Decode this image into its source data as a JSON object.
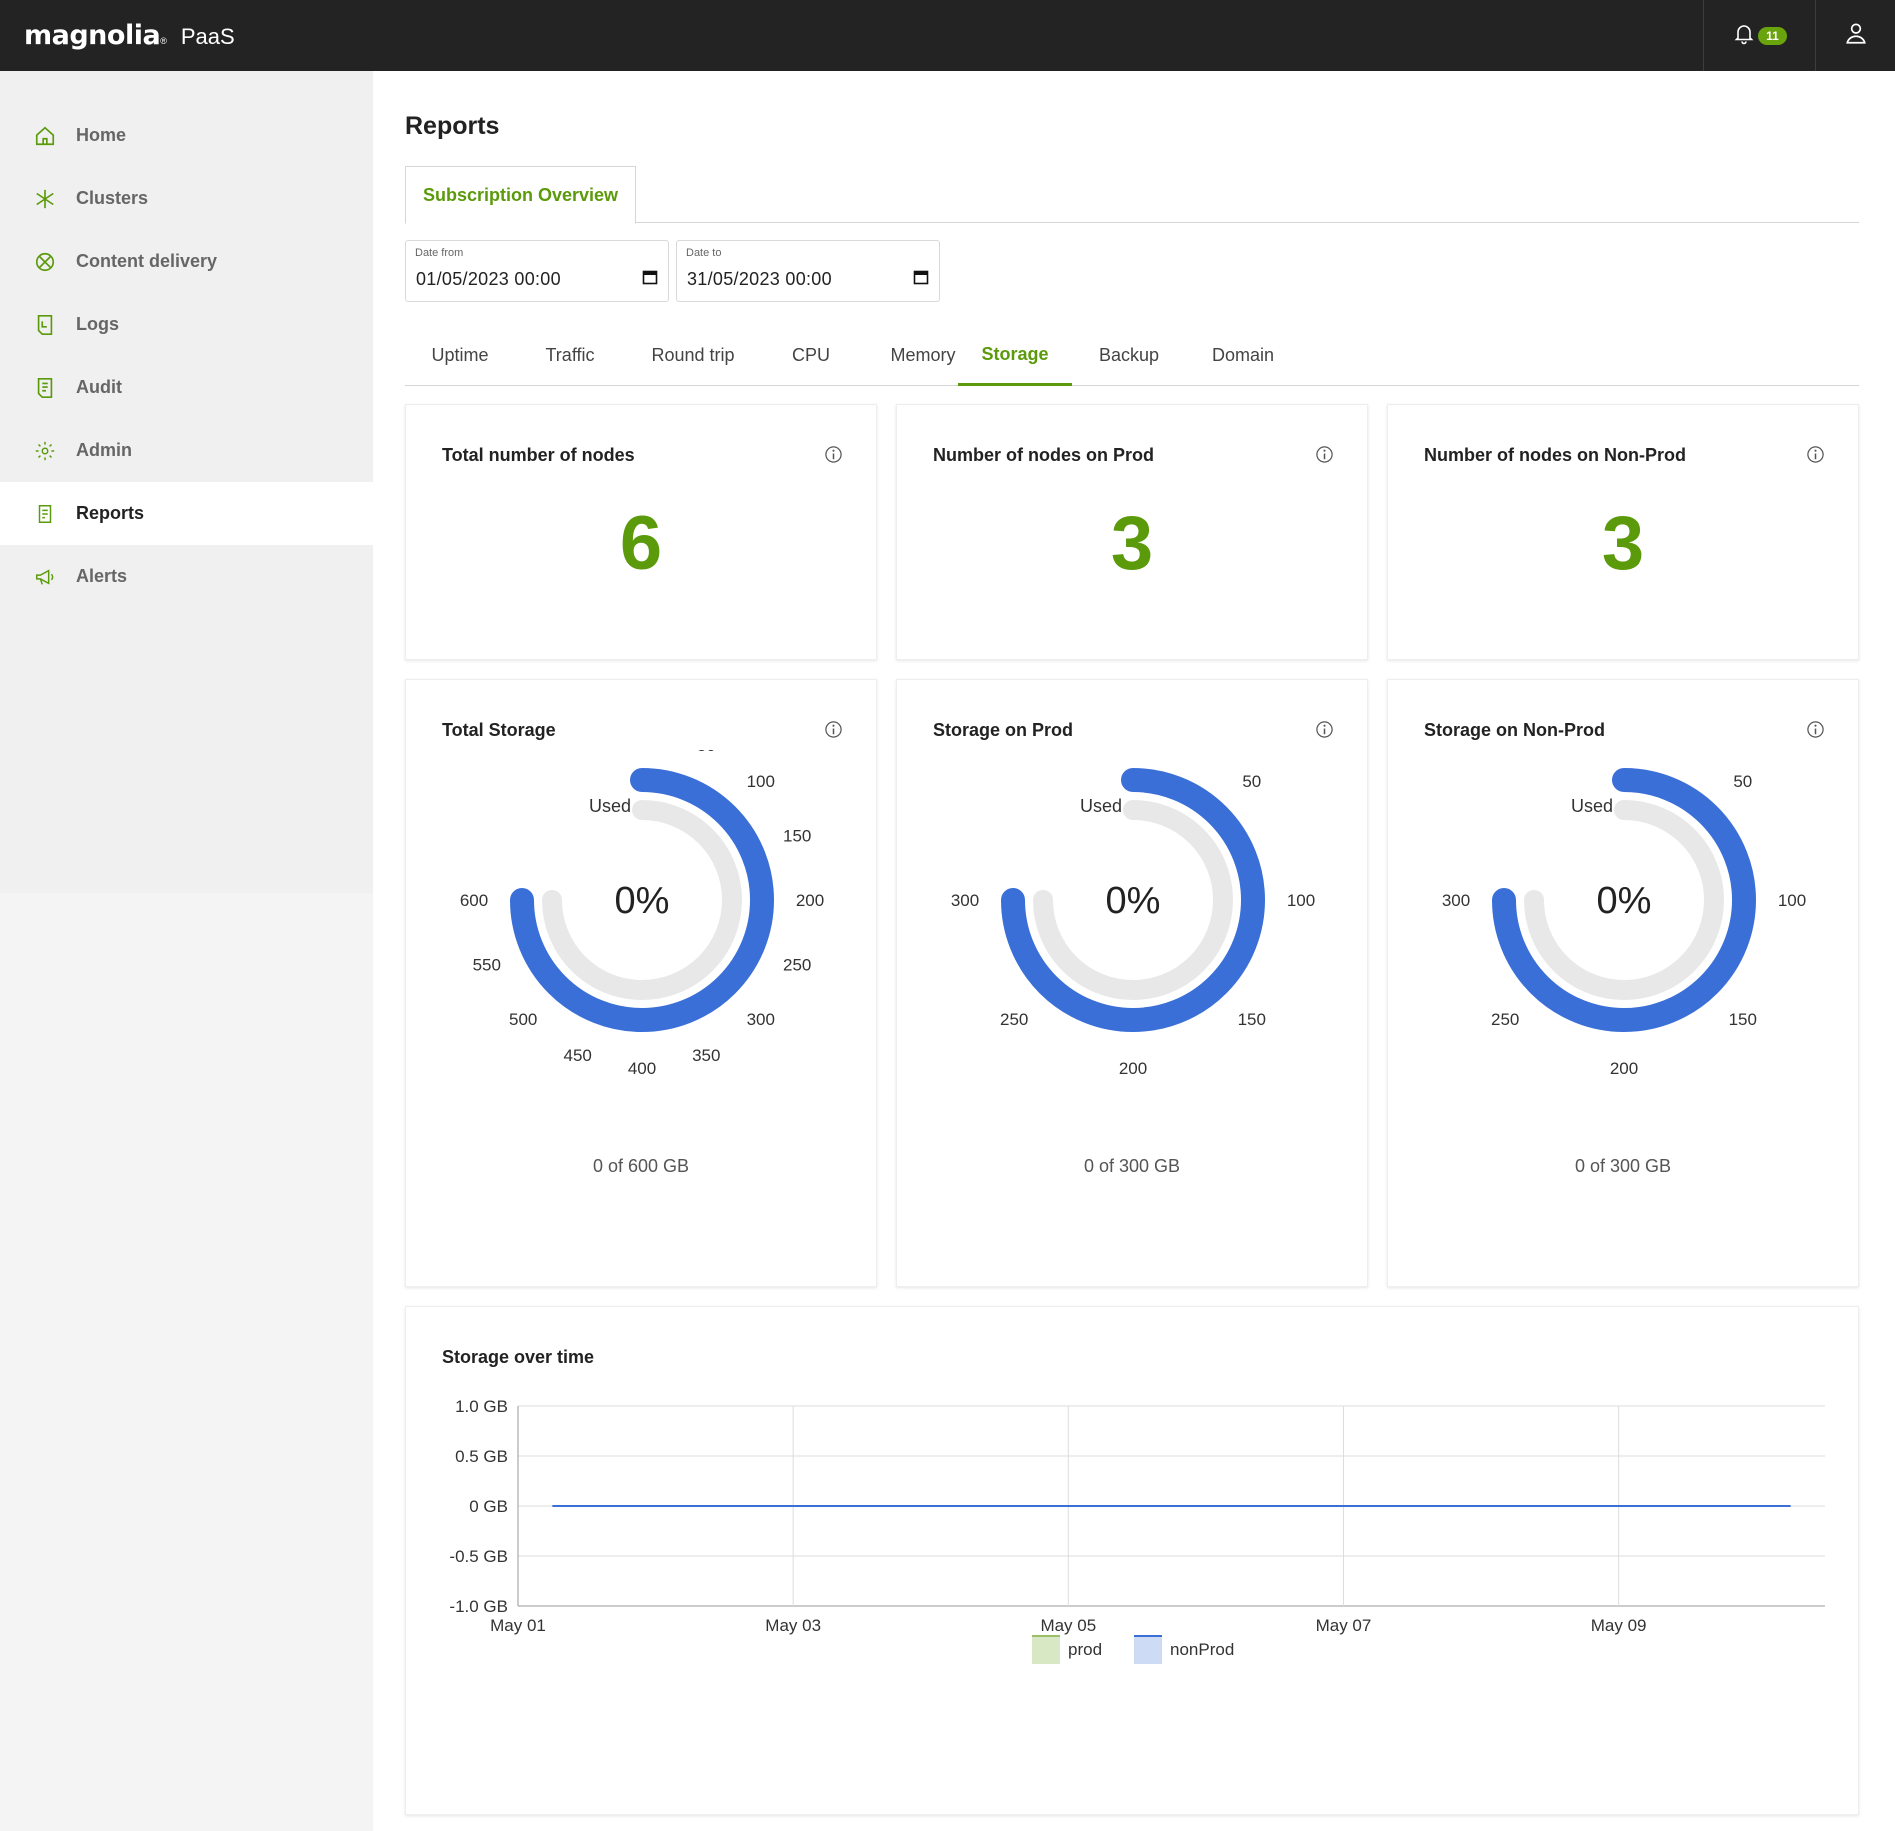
{
  "header": {
    "brand": "magnolia",
    "brand_mark": "®",
    "product": "PaaS",
    "notification_count": "11",
    "icons": {
      "bell": "bell-icon",
      "user": "user-icon"
    }
  },
  "sidebar": {
    "items": [
      {
        "label": "Home",
        "icon": "home-icon",
        "active": false
      },
      {
        "label": "Clusters",
        "icon": "clusters-icon",
        "active": false
      },
      {
        "label": "Content delivery",
        "icon": "content-delivery-icon",
        "active": false
      },
      {
        "label": "Logs",
        "icon": "logs-icon",
        "active": false
      },
      {
        "label": "Audit",
        "icon": "audit-icon",
        "active": false
      },
      {
        "label": "Admin",
        "icon": "gear-icon",
        "active": false
      },
      {
        "label": "Reports",
        "icon": "reports-icon",
        "active": true
      },
      {
        "label": "Alerts",
        "icon": "megaphone-icon",
        "active": false
      }
    ]
  },
  "main": {
    "title": "Reports",
    "top_tab": "Subscription Overview",
    "date_from": {
      "label": "Date from",
      "value": "01/05/2023 00:00"
    },
    "date_to": {
      "label": "Date to",
      "value": "31/05/2023 00:00"
    },
    "tabs": [
      {
        "label": "Uptime",
        "active": false
      },
      {
        "label": "Traffic",
        "active": false
      },
      {
        "label": "Round trip",
        "active": false
      },
      {
        "label": "CPU",
        "active": false
      },
      {
        "label": "Memory",
        "active": false
      },
      {
        "label": "Storage",
        "active": true
      },
      {
        "label": "Backup",
        "active": false
      },
      {
        "label": "Domain",
        "active": false
      }
    ],
    "node_cards": [
      {
        "title": "Total number of nodes",
        "value": "6"
      },
      {
        "title": "Number of nodes on Prod",
        "value": "3"
      },
      {
        "title": "Number of nodes on Non-Prod",
        "value": "3"
      }
    ],
    "storage_cards": [
      {
        "title": "Total Storage",
        "center": "0%",
        "used_label": "Used",
        "caption": "0 of 600 GB",
        "max": 600,
        "step": 50,
        "used_fraction": 0
      },
      {
        "title": "Storage on Prod",
        "center": "0%",
        "used_label": "Used",
        "caption": "0 of 300 GB",
        "max": 300,
        "step": 50,
        "used_fraction": 0
      },
      {
        "title": "Storage on Non-Prod",
        "center": "0%",
        "used_label": "Used",
        "caption": "0 of 300 GB",
        "max": 300,
        "step": 50,
        "used_fraction": 0
      }
    ]
  },
  "colors": {
    "accent_green": "#5b9a0b",
    "gauge_blue": "#3a6fd8",
    "gauge_track": "#e8e8e8",
    "header_bg": "#232323"
  },
  "chart_data": {
    "type": "line",
    "title": "Storage over time",
    "x": [
      "May 01",
      "May 02",
      "May 03",
      "May 04",
      "May 05",
      "May 06",
      "May 07",
      "May 08",
      "May 09",
      "May 10"
    ],
    "x_tick_labels": [
      "May 01",
      "May 03",
      "May 05",
      "May 07",
      "May 09"
    ],
    "y_tick_labels": [
      "1.0 GB",
      "0.5 GB",
      "0 GB",
      "-0.5 GB",
      "-1.0 GB"
    ],
    "ylim": [
      -1.0,
      1.0
    ],
    "series": [
      {
        "name": "prod",
        "values": [
          0,
          0,
          0,
          0,
          0,
          0,
          0,
          0,
          0,
          0
        ],
        "color": "#d9e8c4"
      },
      {
        "name": "nonProd",
        "values": [
          0,
          0,
          0,
          0,
          0,
          0,
          0,
          0,
          0,
          0
        ],
        "color": "#3a6fd8"
      }
    ],
    "legend": "bottom",
    "grid": true
  }
}
